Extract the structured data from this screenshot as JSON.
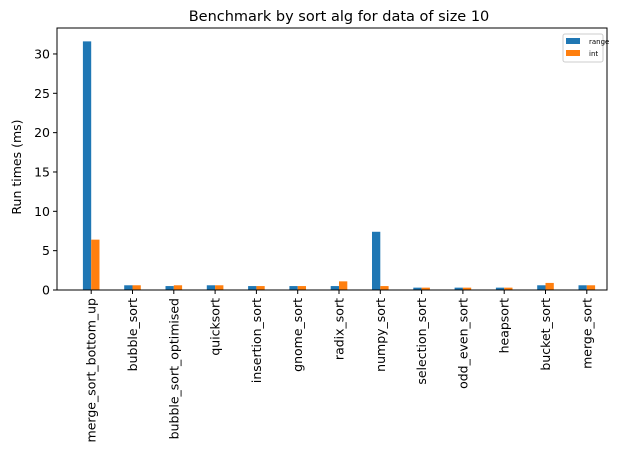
{
  "chart_data": {
    "type": "bar",
    "title": "Benchmark by sort alg for data of size 10",
    "xlabel": "",
    "ylabel": "Run times (ms)",
    "ylim": [
      0,
      33.3
    ],
    "yticks": [
      0,
      5,
      10,
      15,
      20,
      25,
      30
    ],
    "grid": false,
    "legend_position": "top-right",
    "categories": [
      "merge_sort_bottom_up",
      "bubble_sort",
      "bubble_sort_optimised",
      "quicksort",
      "insertion_sort",
      "gnome_sort",
      "radix_sort",
      "numpy_sort",
      "selection_sort",
      "odd_even_sort",
      "heapsort",
      "bucket_sort",
      "merge_sort"
    ],
    "series": [
      {
        "name": "range",
        "color": "#1f77b4",
        "values": [
          31.6,
          0.6,
          0.5,
          0.6,
          0.5,
          0.5,
          0.5,
          7.4,
          0.3,
          0.3,
          0.3,
          0.6,
          0.6
        ]
      },
      {
        "name": "int",
        "color": "#ff7f0e",
        "values": [
          6.4,
          0.6,
          0.6,
          0.6,
          0.5,
          0.5,
          1.1,
          0.5,
          0.3,
          0.3,
          0.3,
          0.9,
          0.6
        ]
      }
    ]
  }
}
